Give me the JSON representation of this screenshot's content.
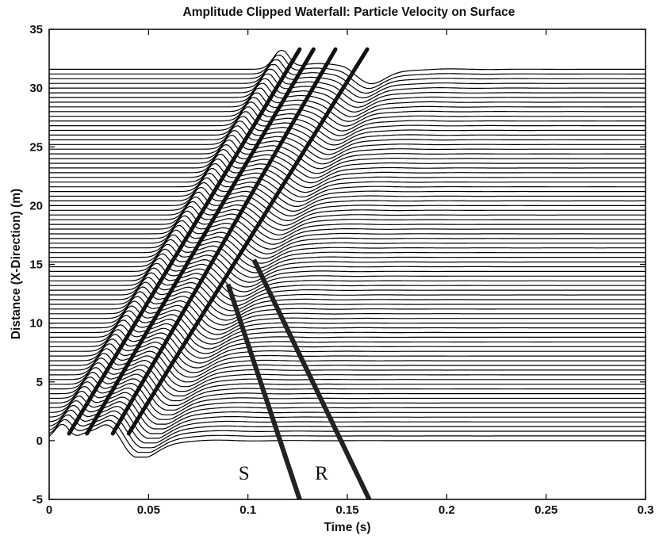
{
  "chart_data": {
    "type": "line",
    "title": "Amplitude Clipped Waterfall:  Particle Velocity on Surface",
    "xlabel": "Time (s)",
    "ylabel": "Distance (X-Direction) (m)",
    "xlim": [
      0,
      0.3
    ],
    "ylim": [
      -5,
      35
    ],
    "xticks": [
      "0",
      "0.05",
      "0.1",
      "0.15",
      "0.2",
      "0.25",
      "0.3"
    ],
    "yticks": [
      "-5",
      "0",
      "5",
      "10",
      "15",
      "20",
      "25",
      "30",
      "35"
    ],
    "grid": false,
    "legend": "none",
    "traces": {
      "count": 80,
      "offset_min": 0,
      "offset_max": 31.6,
      "time_end": 0.3
    },
    "wave_fronts": [
      {
        "t0": 0.01,
        "x0": 0.0,
        "t1": 0.126,
        "x1": 33.3
      },
      {
        "t0": 0.019,
        "x0": 0.0,
        "t1": 0.133,
        "x1": 33.3
      },
      {
        "t0": 0.032,
        "x0": 0.0,
        "t1": 0.144,
        "x1": 33.3
      },
      {
        "t0": 0.04,
        "x0": 0.0,
        "t1": 0.16,
        "x1": 33.3
      }
    ],
    "annotations": [
      {
        "text": "S",
        "x": 0.098,
        "y": -3.3,
        "line": [
          [
            0.09,
            13.3
          ],
          [
            0.126,
            -5.0
          ]
        ]
      },
      {
        "text": "R",
        "x": 0.137,
        "y": -3.3,
        "line": [
          [
            0.103,
            15.4
          ],
          [
            0.161,
            -5.0
          ]
        ]
      }
    ],
    "color": "#000000"
  }
}
